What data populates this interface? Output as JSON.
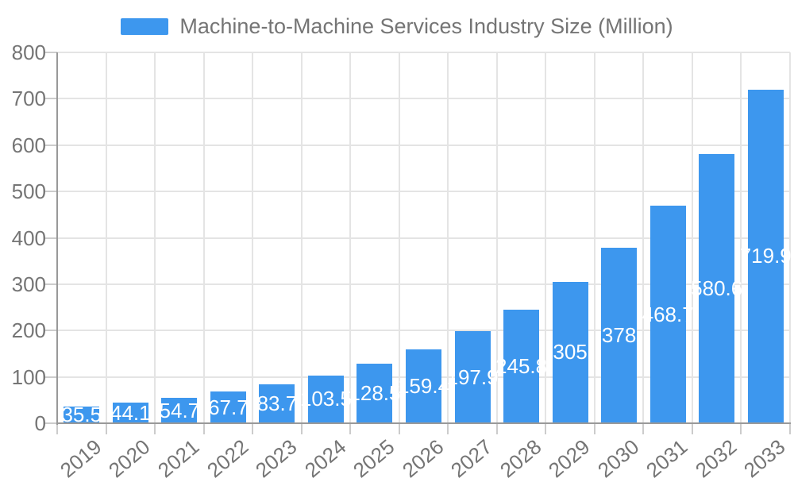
{
  "chart_data": {
    "type": "bar",
    "title": "Machine-to-Machine Services Industry Size (Million)",
    "categories": [
      "2019",
      "2020",
      "2021",
      "2022",
      "2023",
      "2024",
      "2025",
      "2026",
      "2027",
      "2028",
      "2029",
      "2030",
      "2031",
      "2032",
      "2033"
    ],
    "values": [
      35.5,
      44.1,
      54.7,
      67.7,
      83.7,
      103.5,
      128.5,
      159.4,
      197.9,
      245.8,
      305,
      378,
      468.7,
      580.6,
      719.9
    ],
    "bar_labels": [
      "35.5",
      "44.1",
      "54.7",
      "67.7",
      "83.7",
      "103.5",
      "128.5",
      "159.4",
      "197.9",
      "245.8",
      "305",
      "378",
      "468.7",
      "580.6",
      "719.9"
    ],
    "xlabel": "",
    "ylabel": "",
    "ylim": [
      0,
      800
    ],
    "yticks": [
      0,
      100,
      200,
      300,
      400,
      500,
      600,
      700,
      800
    ],
    "legend_position": "top",
    "grid": true,
    "bar_color": "#3d97ee",
    "bar_label_color": "#ffffff",
    "axis_text_color": "#757575",
    "gridline_color": "#e4e4e4",
    "axis_line_color": "#999999",
    "tick_color": "#cccccc"
  }
}
